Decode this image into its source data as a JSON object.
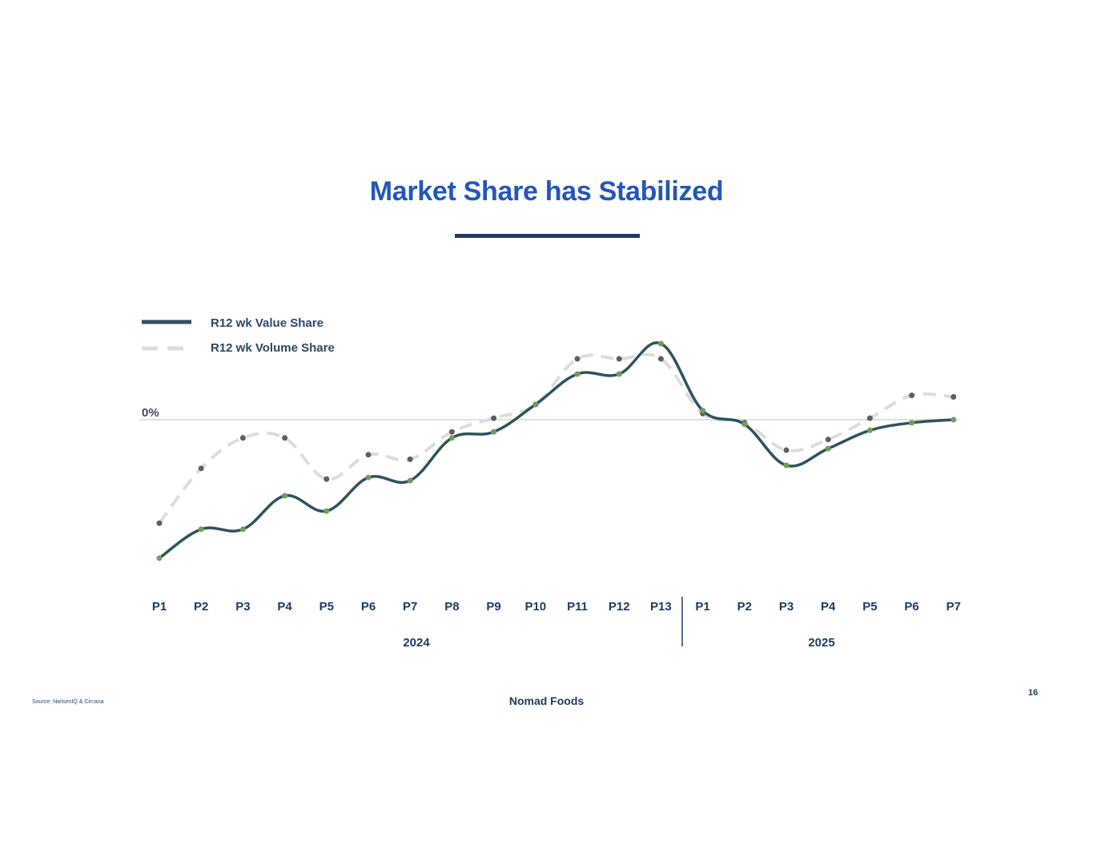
{
  "slide": {
    "title": "Market Share has Stabilized",
    "source": "Source: NielsenIQ & Circana",
    "brand": "Nomad Foods",
    "page_number": "16"
  },
  "colors": {
    "value_line": "#2f5260",
    "volume_line": "#dcdcdc",
    "value_marker": "#6fa05a",
    "volume_marker": "#5f5f5f",
    "zero_line": "#d6d6d6",
    "axis_text": "#1f3a68"
  },
  "chart_data": {
    "type": "line",
    "title": "",
    "xlabel": "",
    "ylabel": "",
    "zero_label": "0%",
    "y_scale_note": "relative share change; only the 0% reference is labelled",
    "ylim": [
      -1.0,
      0.55
    ],
    "categories": [
      "P1",
      "P2",
      "P3",
      "P4",
      "P5",
      "P6",
      "P7",
      "P8",
      "P9",
      "P10",
      "P11",
      "P12",
      "P13",
      "P1",
      "P2",
      "P3",
      "P4",
      "P5",
      "P6",
      "P7"
    ],
    "groups": [
      {
        "label": "2024",
        "start": 0,
        "end": 12
      },
      {
        "label": "2025",
        "start": 13,
        "end": 19
      }
    ],
    "legend_position": "top-left",
    "series": [
      {
        "name": "R12 wk Value Share",
        "style": "solid",
        "values": [
          -0.91,
          -0.72,
          -0.72,
          -0.5,
          -0.6,
          -0.38,
          -0.4,
          -0.12,
          -0.08,
          0.1,
          0.3,
          0.3,
          0.5,
          0.06,
          -0.03,
          -0.3,
          -0.19,
          -0.07,
          -0.02,
          0.0
        ]
      },
      {
        "name": "R12 wk Volume Share",
        "style": "dashed",
        "values": [
          -0.68,
          -0.32,
          -0.12,
          -0.12,
          -0.39,
          -0.23,
          -0.26,
          -0.08,
          0.01,
          0.1,
          0.4,
          0.4,
          0.4,
          0.04,
          -0.02,
          -0.2,
          -0.13,
          0.01,
          0.16,
          0.15
        ]
      }
    ]
  }
}
